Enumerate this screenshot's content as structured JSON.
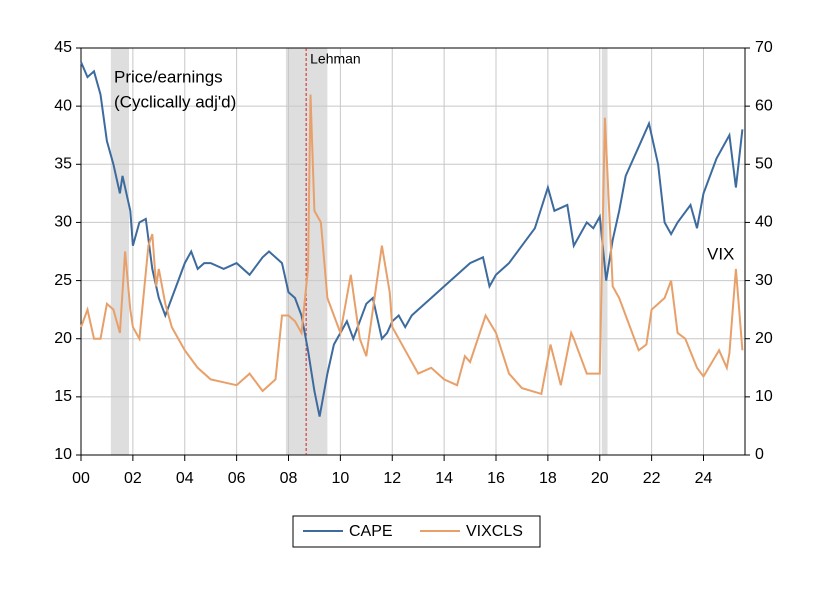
{
  "chart_data": {
    "type": "line",
    "annotations": [
      "Price/earnings",
      "(Cyclically adj'd)",
      "VIX"
    ],
    "events": [
      {
        "x": 2008.68,
        "label": "Lehman",
        "color": "#cc2222"
      }
    ],
    "shaded_periods": [
      [
        2001.15,
        2001.85
      ],
      [
        2007.9,
        2009.5
      ],
      [
        2020.08,
        2020.3
      ]
    ],
    "xlim": [
      2000,
      2025.6
    ],
    "xticks": [
      {
        "value": 2000,
        "label": "00"
      },
      {
        "value": 2002,
        "label": "02"
      },
      {
        "value": 2004,
        "label": "04"
      },
      {
        "value": 2006,
        "label": "06"
      },
      {
        "value": 2008,
        "label": "08"
      },
      {
        "value": 2010,
        "label": "10"
      },
      {
        "value": 2012,
        "label": "12"
      },
      {
        "value": 2014,
        "label": "14"
      },
      {
        "value": 2016,
        "label": "16"
      },
      {
        "value": 2018,
        "label": "18"
      },
      {
        "value": 2020,
        "label": "20"
      },
      {
        "value": 2022,
        "label": "22"
      },
      {
        "value": 2024,
        "label": "24"
      }
    ],
    "ylim": [
      10,
      45
    ],
    "yticks": [
      10,
      15,
      20,
      25,
      30,
      35,
      40,
      45
    ],
    "y2lim": [
      0,
      70
    ],
    "y2ticks": [
      0,
      10,
      20,
      30,
      40,
      50,
      60,
      70
    ],
    "grid": true,
    "legend": "bottom",
    "series": [
      {
        "name": "CAPE",
        "color": "#3d6b9e",
        "x": [
          2000.0,
          2000.25,
          2000.5,
          2000.75,
          2001.0,
          2001.25,
          2001.5,
          2001.6,
          2001.9,
          2002.0,
          2002.25,
          2002.5,
          2002.75,
          2003.0,
          2003.25,
          2003.5,
          2003.75,
          2004.0,
          2004.25,
          2004.5,
          2004.75,
          2005.0,
          2005.5,
          2006.0,
          2006.5,
          2007.0,
          2007.25,
          2007.5,
          2007.75,
          2008.0,
          2008.25,
          2008.5,
          2008.75,
          2009.0,
          2009.2,
          2009.5,
          2009.75,
          2010.0,
          2010.25,
          2010.5,
          2010.75,
          2011.0,
          2011.25,
          2011.6,
          2011.8,
          2012.0,
          2012.25,
          2012.5,
          2012.75,
          2013.0,
          2013.5,
          2014.0,
          2014.5,
          2015.0,
          2015.5,
          2015.75,
          2016.0,
          2016.5,
          2017.0,
          2017.5,
          2018.0,
          2018.25,
          2018.75,
          2019.0,
          2019.5,
          2019.75,
          2020.0,
          2020.25,
          2020.5,
          2020.75,
          2021.0,
          2021.5,
          2021.9,
          2022.25,
          2022.5,
          2022.75,
          2023.0,
          2023.5,
          2023.75,
          2024.0,
          2024.5,
          2025.0,
          2025.25,
          2025.5
        ],
        "values": [
          43.8,
          42.5,
          43,
          41,
          37,
          35,
          32.5,
          34,
          31,
          28,
          30,
          30.3,
          26,
          23.5,
          22,
          23.5,
          25,
          26.5,
          27.5,
          26,
          26.5,
          26.5,
          26,
          26.5,
          25.5,
          27,
          27.5,
          27,
          26.5,
          24,
          23.5,
          22,
          19,
          15.5,
          13.3,
          17,
          19.5,
          20.5,
          21.5,
          20,
          21.5,
          23,
          23.5,
          20,
          20.5,
          21.5,
          22,
          21,
          22,
          22.5,
          23.5,
          24.5,
          25.5,
          26.5,
          27,
          24.5,
          25.5,
          26.5,
          28,
          29.5,
          33,
          31,
          31.5,
          28,
          30,
          29.5,
          30.5,
          25,
          28.5,
          31,
          34,
          36.5,
          38.5,
          35,
          30,
          29,
          30,
          31.5,
          29.5,
          32.5,
          35.5,
          37.5,
          33,
          38
        ]
      },
      {
        "name": "VIXCLS",
        "color": "#e8a06a",
        "axis": "y2",
        "x": [
          2000.0,
          2000.25,
          2000.5,
          2000.75,
          2001.0,
          2001.25,
          2001.5,
          2001.7,
          2001.9,
          2002.0,
          2002.25,
          2002.6,
          2002.75,
          2002.9,
          2003.0,
          2003.25,
          2003.5,
          2003.75,
          2004.0,
          2004.5,
          2005.0,
          2005.5,
          2006.0,
          2006.5,
          2007.0,
          2007.5,
          2007.75,
          2008.0,
          2008.25,
          2008.5,
          2008.75,
          2008.85,
          2009.0,
          2009.25,
          2009.5,
          2009.75,
          2010.0,
          2010.4,
          2010.75,
          2011.0,
          2011.6,
          2011.9,
          2012.0,
          2012.5,
          2013.0,
          2013.5,
          2014.0,
          2014.5,
          2014.8,
          2015.0,
          2015.6,
          2016.0,
          2016.5,
          2017.0,
          2017.75,
          2018.1,
          2018.5,
          2018.9,
          2019.0,
          2019.5,
          2020.0,
          2020.2,
          2020.5,
          2020.75,
          2021.0,
          2021.5,
          2021.8,
          2022.0,
          2022.5,
          2022.75,
          2023.0,
          2023.3,
          2023.75,
          2024.0,
          2024.6,
          2024.9,
          2025.0,
          2025.25,
          2025.5
        ],
        "values": [
          22,
          25,
          20,
          20,
          26,
          25,
          21,
          35,
          25,
          22,
          20,
          36,
          38,
          29,
          32,
          26,
          22,
          20,
          18,
          15,
          13,
          12.5,
          12,
          14,
          11,
          13,
          24,
          24,
          23,
          21,
          32,
          62,
          42,
          40,
          27,
          24,
          21,
          31,
          20,
          17,
          36,
          28,
          22,
          18,
          14,
          15,
          13,
          12,
          17,
          16,
          24,
          21,
          14,
          11.5,
          10.5,
          19,
          12,
          21,
          20,
          14,
          14,
          58,
          29,
          27,
          24,
          18,
          19,
          25,
          27,
          30,
          21,
          20,
          15,
          13.5,
          18,
          15,
          17.5,
          32,
          18
        ]
      }
    ]
  }
}
